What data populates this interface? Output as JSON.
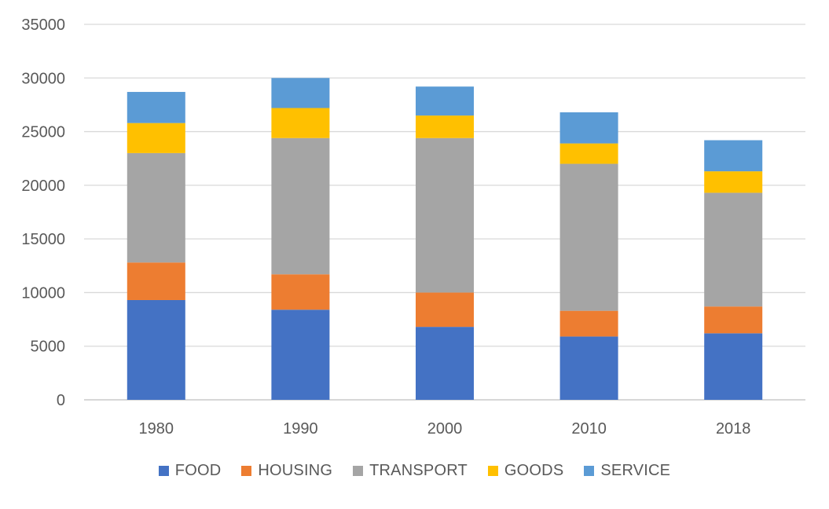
{
  "chart_data": {
    "type": "bar",
    "stacked": true,
    "categories": [
      "1980",
      "1990",
      "2000",
      "2010",
      "2018"
    ],
    "series": [
      {
        "name": "FOOD",
        "color": "#4472C4",
        "values": [
          9300,
          8400,
          6800,
          5900,
          6200
        ]
      },
      {
        "name": "HOUSING",
        "color": "#ED7D31",
        "values": [
          3500,
          3300,
          3200,
          2400,
          2500
        ]
      },
      {
        "name": "TRANSPORT",
        "color": "#A5A5A5",
        "values": [
          10200,
          12700,
          14400,
          13700,
          10600
        ]
      },
      {
        "name": "GOODS",
        "color": "#FFC000",
        "values": [
          2800,
          2800,
          2100,
          1900,
          2000
        ]
      },
      {
        "name": "SERVICE",
        "color": "#5B9BD5",
        "values": [
          2900,
          2800,
          2700,
          2900,
          2900
        ]
      }
    ],
    "ylim": [
      0,
      35000
    ],
    "yticks": [
      "0",
      "5000",
      "10000",
      "15000",
      "20000",
      "25000",
      "30000",
      "35000"
    ],
    "grid": true,
    "legend_position": "bottom"
  }
}
